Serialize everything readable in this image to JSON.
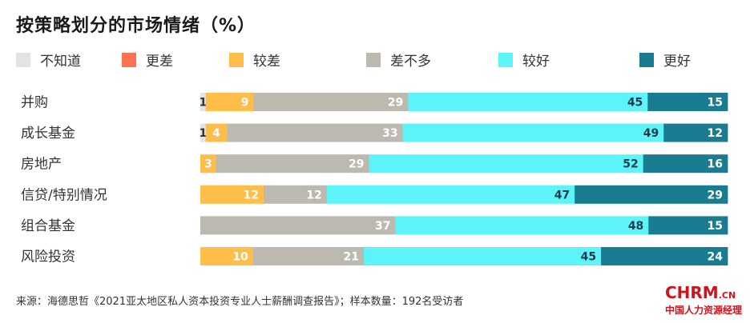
{
  "chart_data": {
    "type": "bar",
    "orientation": "horizontal",
    "stacked": "100%",
    "title": "按策略划分的市场情绪（%）",
    "categories": [
      "并购",
      "成长基金",
      "房地产",
      "信贷/特别情况",
      "组合基金",
      "风险投资"
    ],
    "series": [
      {
        "name": "不知道",
        "color": "#e3e3e3",
        "values": [
          1,
          1,
          0,
          0,
          0,
          0
        ]
      },
      {
        "name": "更差",
        "color": "#ff7355",
        "values": [
          0,
          0,
          0,
          0,
          0,
          0
        ]
      },
      {
        "name": "较差",
        "color": "#ffbd4a",
        "values": [
          9,
          4,
          3,
          12,
          0,
          10
        ]
      },
      {
        "name": "差不多",
        "color": "#bcb9b0",
        "values": [
          29,
          33,
          29,
          12,
          37,
          21
        ]
      },
      {
        "name": "较好",
        "color": "#5cf4f8",
        "values": [
          45,
          49,
          52,
          47,
          48,
          45
        ]
      },
      {
        "name": "更好",
        "color": "#197c90",
        "values": [
          15,
          12,
          16,
          29,
          15,
          24
        ]
      }
    ],
    "legend_position": "top",
    "grid": false
  },
  "source": "来源：海德思哲《2021亚太地区私人资本投资专业人士薪酬调查报告》；样本数量：192名受访者",
  "logo": {
    "mark": "CHRM",
    "suffix": ".CN",
    "subtitle": "中国人力资源经理"
  }
}
